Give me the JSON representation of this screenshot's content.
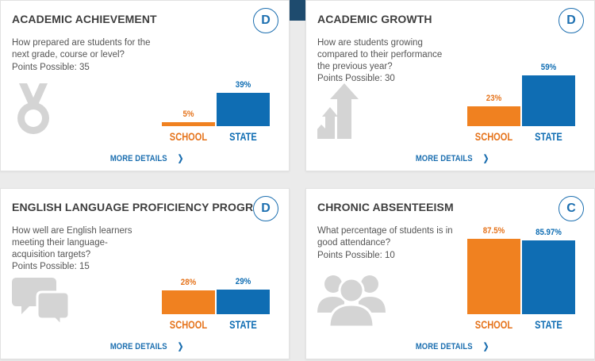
{
  "colors": {
    "school": "#f08120",
    "state": "#0f6db3",
    "grade": "#1c6fb0",
    "icon": "#d4d4d4"
  },
  "cards": [
    {
      "title": "ACADEMIC ACHIEVEMENT",
      "grade": "D",
      "question": "How prepared are students for the next grade, course or level?",
      "points": "Points Possible: 35",
      "icon": "medal-icon",
      "school_value": 5,
      "school_label": "5%",
      "state_value": 39,
      "state_label": "39%",
      "school_axis": "SCHOOL",
      "state_axis": "STATE",
      "more": "MORE DETAILS"
    },
    {
      "title": "ACADEMIC GROWTH",
      "grade": "D",
      "question": "How are students growing compared to their performance the previous year?",
      "points": "Points Possible: 30",
      "icon": "growth-arrow-icon",
      "school_value": 23,
      "school_label": "23%",
      "state_value": 59,
      "state_label": "59%",
      "school_axis": "SCHOOL",
      "state_axis": "STATE",
      "more": "MORE DETAILS"
    },
    {
      "title": "ENGLISH LANGUAGE PROFICIENCY PROGRESS",
      "grade": "D",
      "question": "How well are English learners meeting their language-acquisition targets?",
      "points": "Points Possible: 15",
      "icon": "speech-bubbles-icon",
      "school_value": 28,
      "school_label": "28%",
      "state_value": 29,
      "state_label": "29%",
      "school_axis": "SCHOOL",
      "state_axis": "STATE",
      "more": "MORE DETAILS"
    },
    {
      "title": "CHRONIC ABSENTEEISM",
      "grade": "C",
      "question": "What percentage of students is in good attendance?",
      "points": "Points Possible: 10",
      "icon": "people-group-icon",
      "school_value": 87.5,
      "school_label": "87.5%",
      "state_value": 85.97,
      "state_label": "85.97%",
      "school_axis": "SCHOOL",
      "state_axis": "STATE",
      "more": "MORE DETAILS"
    }
  ]
}
